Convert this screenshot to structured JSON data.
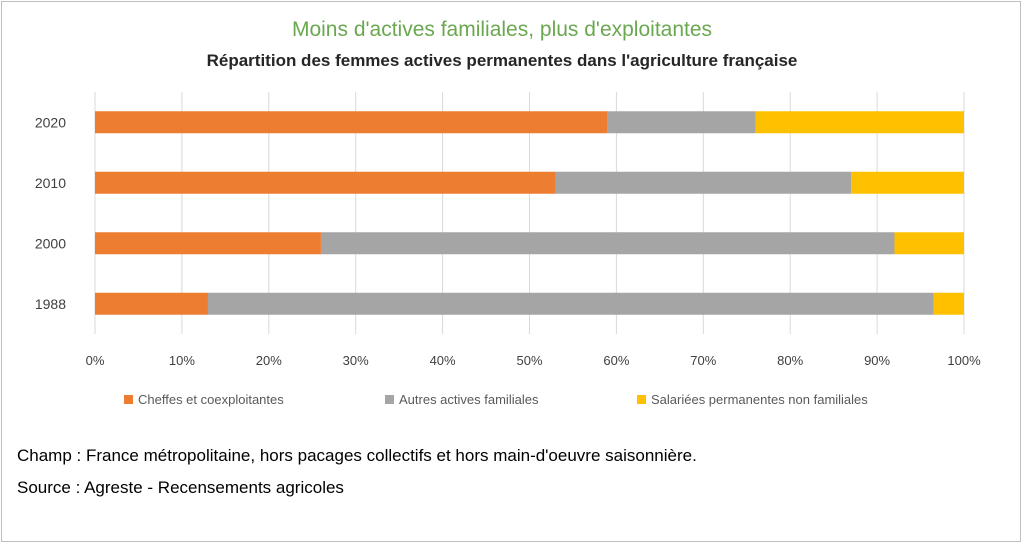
{
  "chart_data": {
    "type": "bar",
    "orientation": "horizontal",
    "stacked": true,
    "title": "Moins d'actives familiales, plus d'exploitantes",
    "subtitle": "Répartition des femmes actives permanentes dans l'agriculture française",
    "categories": [
      "2020",
      "2010",
      "2000",
      "1988"
    ],
    "series": [
      {
        "name": "Cheffes et coexploitantes",
        "color": "#ed7d31",
        "values": [
          59,
          53,
          26,
          13
        ]
      },
      {
        "name": "Autres actives familiales",
        "color": "#a5a5a5",
        "values": [
          17,
          34,
          66,
          83.5
        ]
      },
      {
        "name": "Salariées permanentes non familiales",
        "color": "#ffc000",
        "values": [
          24,
          13,
          8,
          3.5
        ]
      }
    ],
    "x_ticks": [
      "0%",
      "10%",
      "20%",
      "30%",
      "40%",
      "50%",
      "60%",
      "70%",
      "80%",
      "90%",
      "100%"
    ],
    "xlim": [
      0,
      100
    ],
    "grid": true,
    "legend_position": "bottom"
  },
  "notes": {
    "champ": "Champ : France métropolitaine, hors pacages collectifs et hors main-d'oeuvre saisonnière.",
    "source": "Source  : Agreste  - Recensements agricoles"
  }
}
